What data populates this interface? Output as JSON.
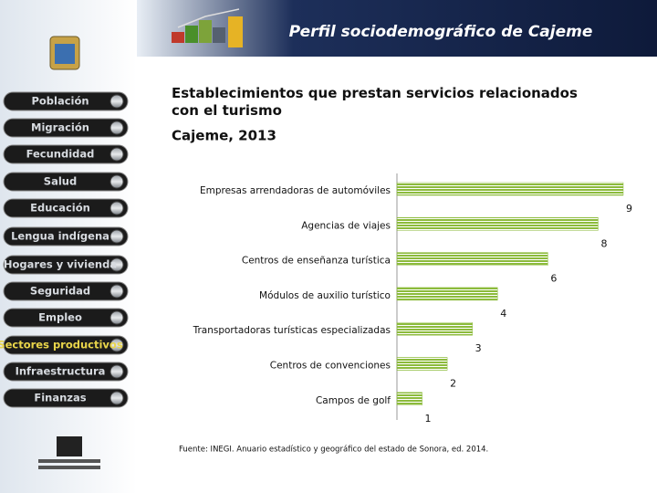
{
  "header": {
    "title": "Perfil sociodemográfico de Cajeme"
  },
  "nav": [
    "Población",
    "Migración",
    "Fecundidad",
    "Salud",
    "Educación",
    "Lengua indígena",
    "Hogares y vivienda",
    "Seguridad",
    "Empleo",
    "Sectores productivos",
    "Infraestructura",
    "Finanzas"
  ],
  "chart_data": {
    "type": "bar",
    "title": "Establecimientos que prestan servicios relacionados con el turismo",
    "subtitle": "Cajeme, 2013",
    "categories": [
      "Empresas arrendadoras de automóviles",
      "Agencias de viajes",
      "Centros de enseñanza turística",
      "Módulos de auxilio turístico",
      "Transportadoras turísticas especializadas",
      "Centros de convenciones",
      "Campos de golf"
    ],
    "values": [
      9,
      8,
      6,
      4,
      3,
      2,
      1
    ],
    "color": "#8cbb3c",
    "note": "Fuente: INEGI. Anuario estadístico y geográfico del estado de Sonora, ed. 2014."
  }
}
